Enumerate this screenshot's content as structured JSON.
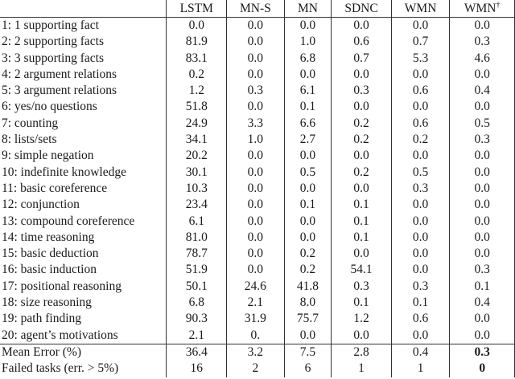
{
  "table": {
    "headers": [
      "",
      "LSTM",
      "MN-S",
      "MN",
      "SDNC",
      "WMN",
      "WMN"
    ],
    "header_superscript": "†",
    "rows": [
      {
        "task": "1: 1 supporting fact",
        "values": [
          "0.0",
          "0.0",
          "0.0",
          "0.0",
          "0.0",
          "0.0"
        ]
      },
      {
        "task": "2: 2 supporting facts",
        "values": [
          "81.9",
          "0.0",
          "1.0",
          "0.6",
          "0.7",
          "0.3"
        ]
      },
      {
        "task": "3: 3 supporting facts",
        "values": [
          "83.1",
          "0.0",
          "6.8",
          "0.7",
          "5.3",
          "4.6"
        ]
      },
      {
        "task": "4: 2 argument relations",
        "values": [
          "0.2",
          "0.0",
          "0.0",
          "0.0",
          "0.0",
          "0.0"
        ]
      },
      {
        "task": "5: 3 argument relations",
        "values": [
          "1.2",
          "0.3",
          "6.1",
          "0.3",
          "0.6",
          "0.4"
        ]
      },
      {
        "task": "6: yes/no questions",
        "values": [
          "51.8",
          "0.0",
          "0.1",
          "0.0",
          "0.0",
          "0.0"
        ]
      },
      {
        "task": "7: counting",
        "values": [
          "24.9",
          "3.3",
          "6.6",
          "0.2",
          "0.6",
          "0.5"
        ]
      },
      {
        "task": "8: lists/sets",
        "values": [
          "34.1",
          "1.0",
          "2.7",
          "0.2",
          "0.2",
          "0.3"
        ]
      },
      {
        "task": "9: simple negation",
        "values": [
          "20.2",
          "0.0",
          "0.0",
          "0.0",
          "0.0",
          "0.0"
        ]
      },
      {
        "task": "10: indefinite knowledge",
        "values": [
          "30.1",
          "0.0",
          "0.5",
          "0.2",
          "0.5",
          "0.0"
        ]
      },
      {
        "task": "11: basic coreference",
        "values": [
          "10.3",
          "0.0",
          "0.0",
          "0.0",
          "0.3",
          "0.0"
        ]
      },
      {
        "task": "12: conjunction",
        "values": [
          "23.4",
          "0.0",
          "0.1",
          "0.1",
          "0.0",
          "0.0"
        ]
      },
      {
        "task": "13: compound coreference",
        "values": [
          "6.1",
          "0.0",
          "0.0",
          "0.1",
          "0.0",
          "0.0"
        ]
      },
      {
        "task": "14: time reasoning",
        "values": [
          "81.0",
          "0.0",
          "0.0",
          "0.1",
          "0.0",
          "0.0"
        ]
      },
      {
        "task": "15: basic deduction",
        "values": [
          "78.7",
          "0.0",
          "0.2",
          "0.0",
          "0.0",
          "0.0"
        ]
      },
      {
        "task": "16: basic induction",
        "values": [
          "51.9",
          "0.0",
          "0.2",
          "54.1",
          "0.0",
          "0.3"
        ]
      },
      {
        "task": "17: positional reasoning",
        "values": [
          "50.1",
          "24.6",
          "41.8",
          "0.3",
          "0.3",
          "0.1"
        ]
      },
      {
        "task": "18: size reasoning",
        "values": [
          "6.8",
          "2.1",
          "8.0",
          "0.1",
          "0.1",
          "0.4"
        ]
      },
      {
        "task": "19: path finding",
        "values": [
          "90.3",
          "31.9",
          "75.7",
          "1.2",
          "0.6",
          "0.0"
        ]
      },
      {
        "task": "20: agent’s motivations",
        "values": [
          "2.1",
          "0.",
          "0.0",
          "0.0",
          "0.0",
          "0.0"
        ]
      }
    ],
    "summary": [
      {
        "task": "Mean Error (%)",
        "values": [
          "36.4",
          "3.2",
          "7.5",
          "2.8",
          "0.4",
          "0.3"
        ],
        "bold_last": true
      },
      {
        "task": "Failed tasks (err. > 5%)",
        "values": [
          "16",
          "2",
          "6",
          "1",
          "1",
          "0"
        ],
        "bold_last": true
      }
    ]
  }
}
